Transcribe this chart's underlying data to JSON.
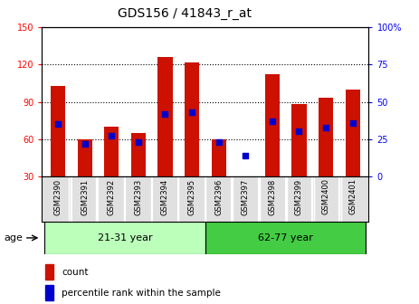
{
  "title": "GDS156 / 41843_r_at",
  "samples": [
    "GSM2390",
    "GSM2391",
    "GSM2392",
    "GSM2393",
    "GSM2394",
    "GSM2395",
    "GSM2396",
    "GSM2397",
    "GSM2398",
    "GSM2399",
    "GSM2400",
    "GSM2401"
  ],
  "counts": [
    103,
    60,
    70,
    65,
    126,
    122,
    60,
    30,
    112,
    88,
    93,
    100
  ],
  "percentiles_pct": [
    35,
    22,
    27,
    23,
    42,
    43,
    23,
    14,
    37,
    30,
    33,
    36
  ],
  "ylim_left": [
    30,
    150
  ],
  "ylim_right": [
    0,
    100
  ],
  "yticks_left": [
    30,
    60,
    90,
    120,
    150
  ],
  "yticks_right": [
    0,
    25,
    50,
    75,
    100
  ],
  "groups": [
    {
      "label": "21-31 year",
      "indices": [
        0,
        1,
        2,
        3,
        4,
        5
      ],
      "color": "#bbffbb"
    },
    {
      "label": "62-77 year",
      "indices": [
        6,
        7,
        8,
        9,
        10,
        11
      ],
      "color": "#44cc44"
    }
  ],
  "bar_color": "#cc1100",
  "dot_color": "#0000cc",
  "age_label": "age",
  "legend_items": [
    {
      "color": "#cc1100",
      "label": "count"
    },
    {
      "color": "#0000cc",
      "label": "percentile rank within the sample"
    }
  ],
  "title_fontsize": 10,
  "tick_fontsize": 7,
  "sample_fontsize": 6,
  "bar_width": 0.55,
  "dot_size": 20
}
